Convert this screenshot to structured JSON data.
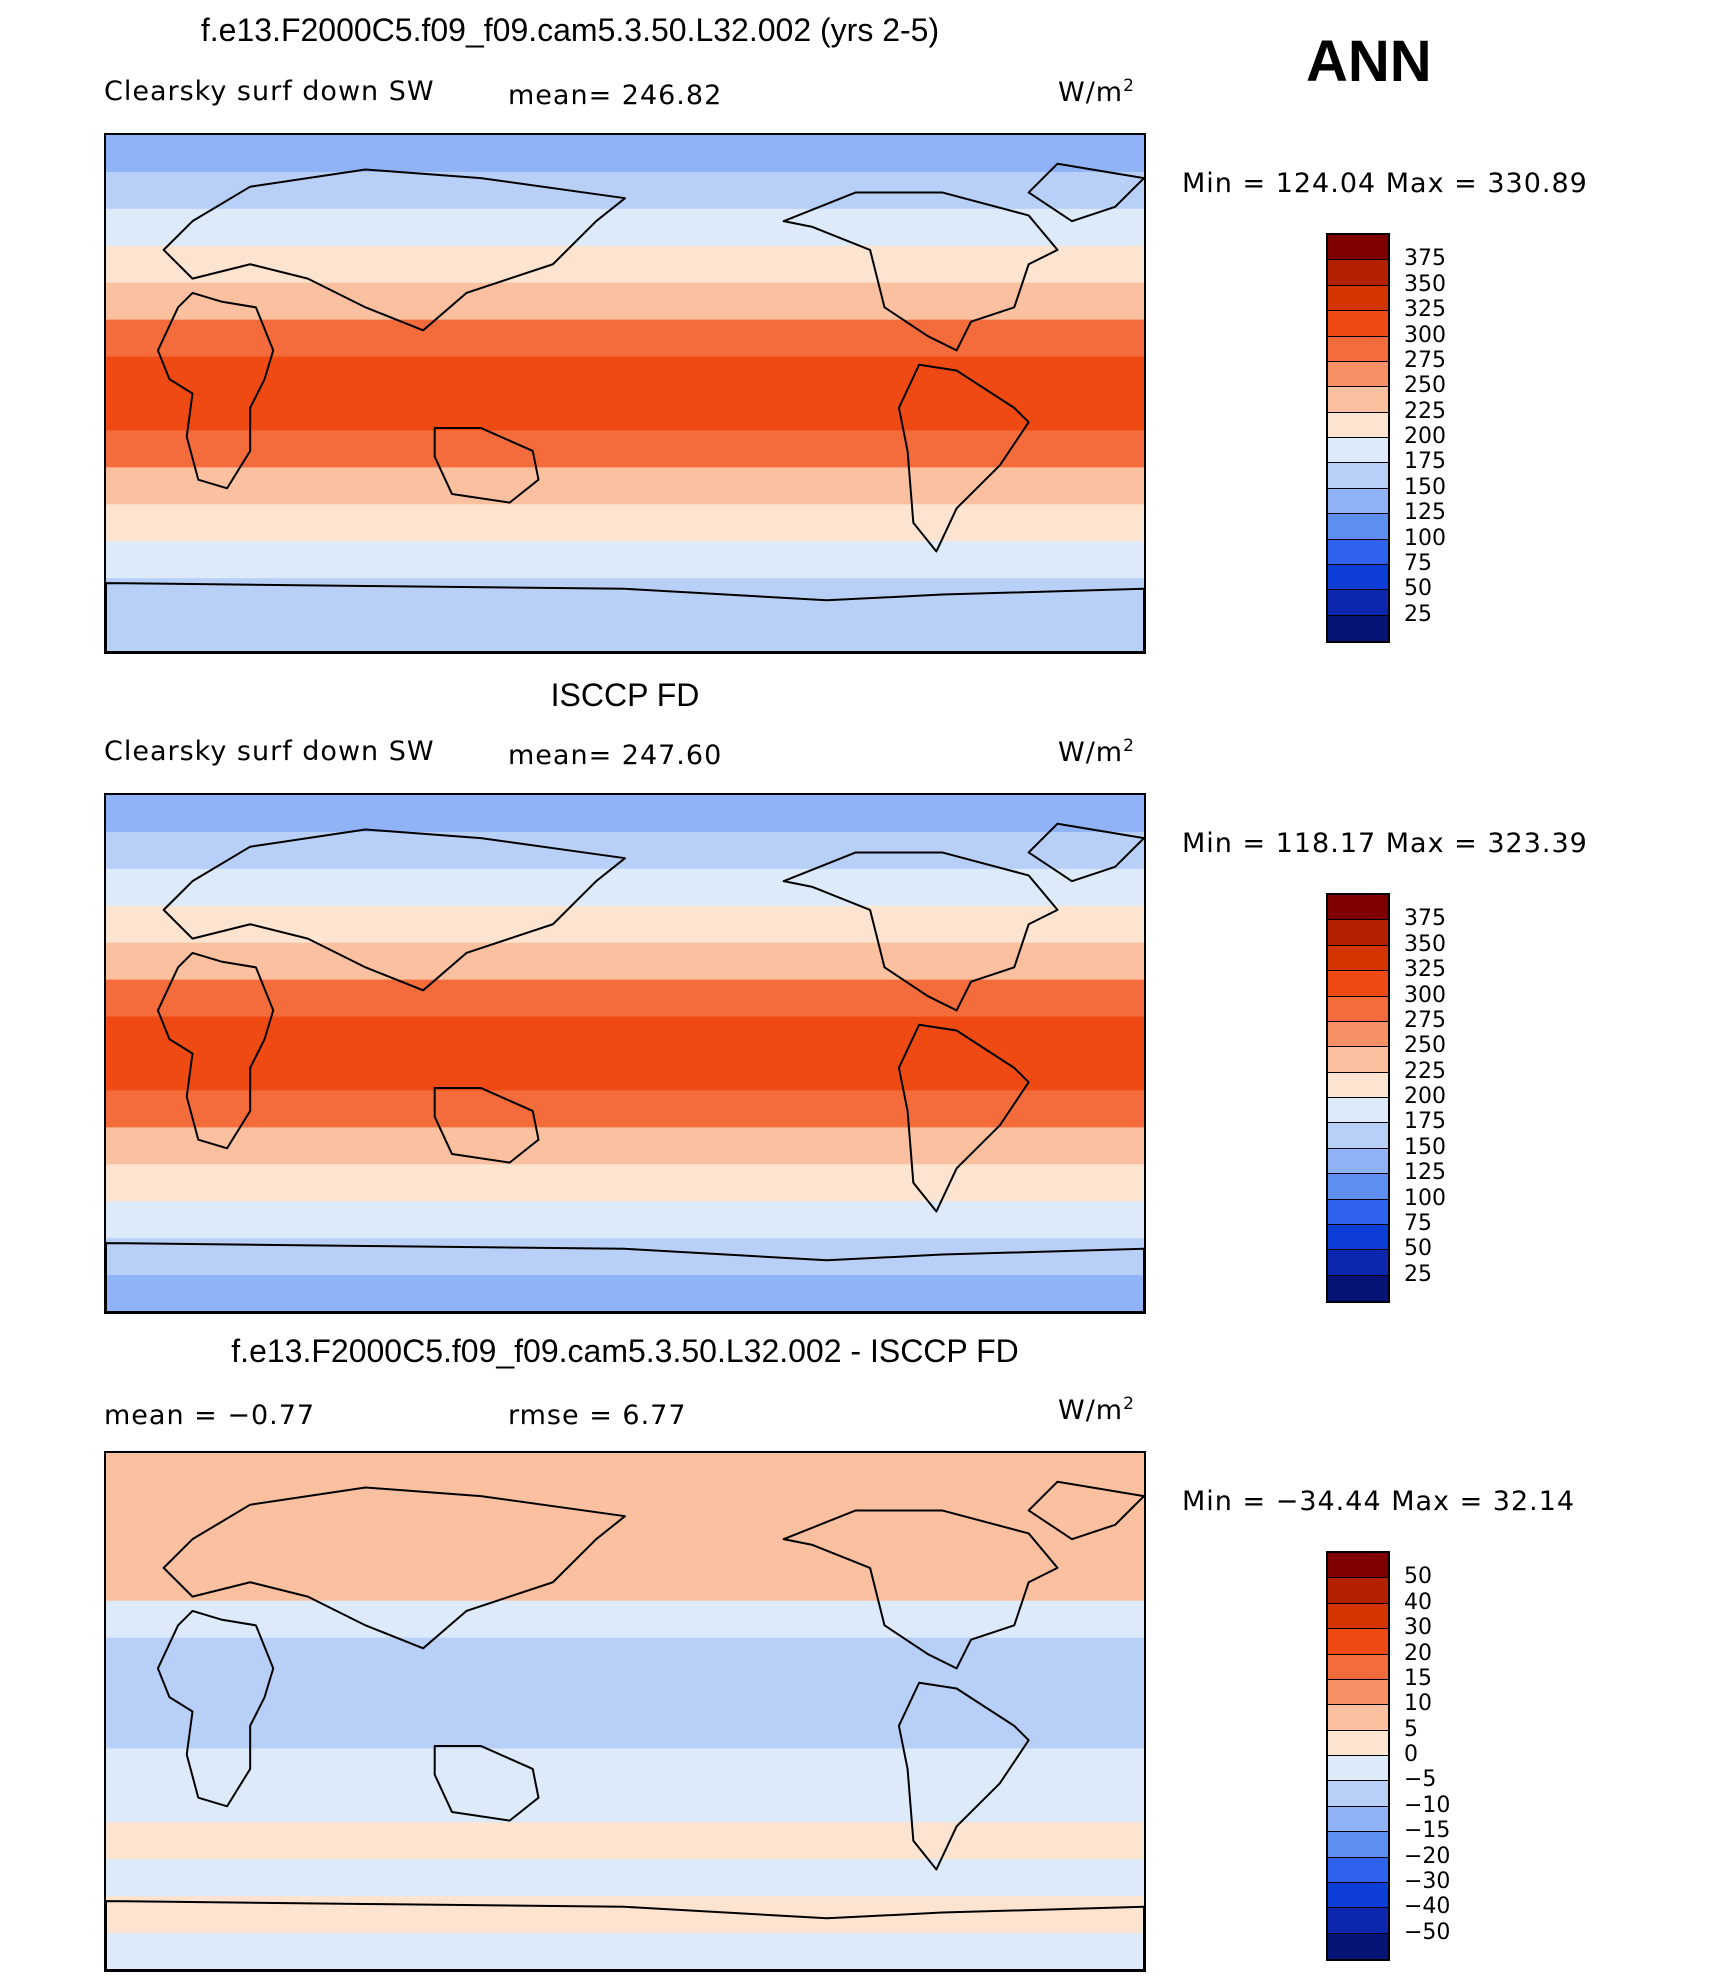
{
  "season": "ANN",
  "panels": [
    {
      "title": "f.e13.F2000C5.f09_f09.cam5.3.50.L32.002 (yrs 2-5)",
      "left_label": "Clearsky surf down SW",
      "mid_label": "mean= 246.82",
      "unit_main": "W/m",
      "unit_sup": "2",
      "range": "Min = 124.04 Max = 330.89"
    },
    {
      "title": "ISCCP FD",
      "left_label": "Clearsky surf down SW",
      "mid_label": "mean= 247.60",
      "unit_main": "W/m",
      "unit_sup": "2",
      "range": "Min = 118.17 Max = 323.39"
    },
    {
      "title": "f.e13.F2000C5.f09_f09.cam5.3.50.L32.002 - ISCCP FD",
      "left_label": "mean = −0.77",
      "mid_label": "rmse = 6.77",
      "unit_main": "W/m",
      "unit_sup": "2",
      "range": "Min = −34.44 Max = 32.14"
    }
  ],
  "colorbar_abs": {
    "labels": [
      "375",
      "350",
      "325",
      "300",
      "275",
      "250",
      "225",
      "200",
      "175",
      "150",
      "125",
      "100",
      "75",
      "50",
      "25"
    ],
    "colors": [
      "#7f0000",
      "#b22000",
      "#d43500",
      "#f04a14",
      "#f46c3c",
      "#f79064",
      "#fac0a0",
      "#fde4d0",
      "#ddeafa",
      "#b8d0f8",
      "#8fb3f6",
      "#5e8ef2",
      "#2f62ec",
      "#0d3fd8",
      "#0a27ad",
      "#061476"
    ]
  },
  "colorbar_diff": {
    "labels": [
      "50",
      "40",
      "30",
      "20",
      "15",
      "10",
      "5",
      "0",
      "−5",
      "−10",
      "−15",
      "−20",
      "−30",
      "−40",
      "−50"
    ],
    "colors": [
      "#7f0000",
      "#b22000",
      "#d43500",
      "#f04a14",
      "#f46c3c",
      "#f79064",
      "#fac0a0",
      "#fde4d0",
      "#ddeafa",
      "#b8d0f8",
      "#8fb3f6",
      "#5e8ef2",
      "#2f62ec",
      "#0d3fd8",
      "#0a27ad",
      "#061476"
    ]
  },
  "chart_data": [
    {
      "type": "heatmap",
      "title": "f.e13.F2000C5.f09_f09.cam5.3.50.L32.002 (yrs 2-5)",
      "variable": "Clearsky surf down SW",
      "units": "W/m2",
      "mean": 246.82,
      "min": 124.04,
      "max": 330.89,
      "contour_levels": [
        25,
        50,
        75,
        100,
        125,
        150,
        175,
        200,
        225,
        250,
        275,
        300,
        325,
        350,
        375
      ],
      "zonal_band_values": [
        140,
        165,
        190,
        215,
        245,
        280,
        300,
        300,
        280,
        245,
        215,
        185,
        160,
        150
      ]
    },
    {
      "type": "heatmap",
      "title": "ISCCP FD",
      "variable": "Clearsky surf down SW",
      "units": "W/m2",
      "mean": 247.6,
      "min": 118.17,
      "max": 323.39,
      "contour_levels": [
        25,
        50,
        75,
        100,
        125,
        150,
        175,
        200,
        225,
        250,
        275,
        300,
        325,
        350,
        375
      ],
      "zonal_band_values": [
        130,
        160,
        185,
        215,
        245,
        285,
        310,
        310,
        285,
        245,
        210,
        180,
        155,
        145
      ]
    },
    {
      "type": "heatmap",
      "title": "f.e13.F2000C5.f09_f09.cam5.3.50.L32.002 - ISCCP FD",
      "units": "W/m2",
      "mean": -0.77,
      "rmse": 6.77,
      "min": -34.44,
      "max": 32.14,
      "contour_levels": [
        -50,
        -40,
        -30,
        -20,
        -15,
        -10,
        -5,
        0,
        5,
        10,
        15,
        20,
        30,
        40,
        50
      ],
      "zonal_band_values": [
        6,
        8,
        7,
        5,
        -4,
        -6,
        -7,
        -7,
        -5,
        -3,
        2,
        -2,
        3,
        -2
      ]
    }
  ]
}
